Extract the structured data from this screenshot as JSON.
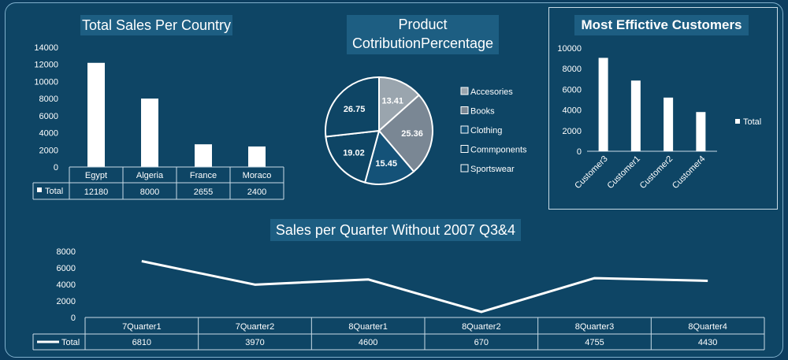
{
  "titles": {
    "country": "Total Sales Per Country",
    "product": "Product CotributionPercentage",
    "customers": "Most Effictive Customers",
    "quarter": "Sales per Quarter Without 2007 Q3&4"
  },
  "chart_data": [
    {
      "type": "bar",
      "title": "Total Sales Per Country",
      "categories": [
        "Egypt",
        "Algeria",
        "France",
        "Moraco"
      ],
      "series": [
        {
          "name": "Total",
          "values": [
            12180,
            8000,
            2655,
            2400
          ]
        }
      ],
      "yticks": [
        0,
        2000,
        4000,
        6000,
        8000,
        10000,
        12000,
        14000
      ],
      "ylim": [
        0,
        14000
      ],
      "data_table": true,
      "legend_position": "data-table"
    },
    {
      "type": "pie",
      "title": "Product CotributionPercentage",
      "categories": [
        "Accesories",
        "Books",
        "Clothing",
        "Commponents",
        "Sportswear"
      ],
      "values": [
        13.41,
        25.36,
        15.45,
        19.02,
        26.75
      ],
      "colors": [
        "#9aa5ae",
        "#7a8794",
        "#145278",
        "#0e4565",
        "#0e4565"
      ],
      "legend_position": "right"
    },
    {
      "type": "bar",
      "title": "Most Effictive Customers",
      "categories": [
        "Customer3",
        "Customer1",
        "Customer2",
        "Customer4"
      ],
      "series": [
        {
          "name": "Total",
          "values": [
            9050,
            6850,
            5200,
            3800
          ]
        }
      ],
      "yticks": [
        0,
        2000,
        4000,
        6000,
        8000,
        10000
      ],
      "ylim": [
        0,
        10000
      ],
      "legend_position": "right"
    },
    {
      "type": "line",
      "title": "Sales per Quarter Without 2007 Q3&4",
      "categories": [
        "7Quarter1",
        "7Quarter2",
        "8Quarter1",
        "8Quarter2",
        "8Quarter3",
        "8Quarter4"
      ],
      "series": [
        {
          "name": "Total",
          "values": [
            6810,
            3970,
            4600,
            670,
            4755,
            4430
          ]
        }
      ],
      "yticks": [
        0,
        2000,
        4000,
        6000,
        8000
      ],
      "ylim": [
        0,
        8000
      ],
      "data_table": true,
      "legend_position": "data-table"
    }
  ]
}
